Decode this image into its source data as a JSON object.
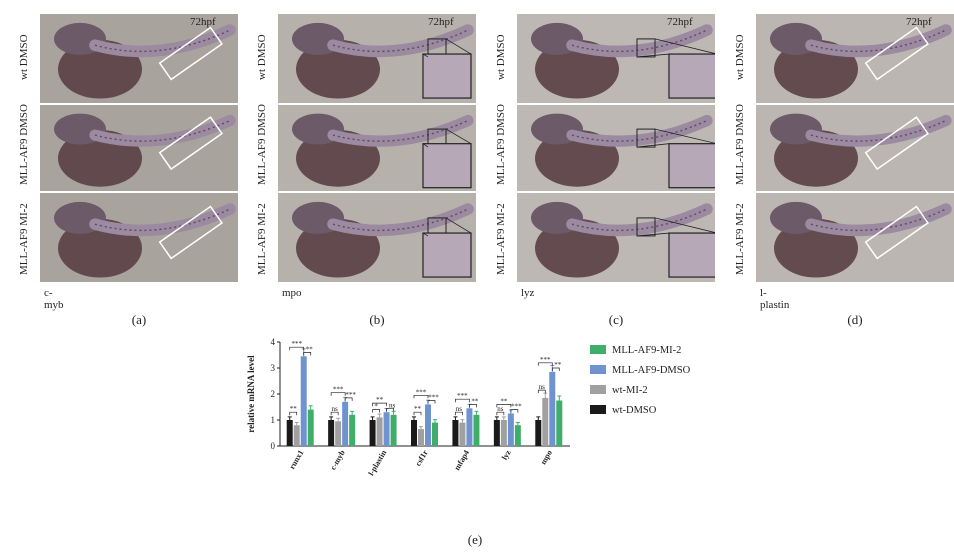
{
  "panels": [
    {
      "id": "a",
      "caption": "(a)",
      "gene": "c-myb",
      "hpf": "72hpf"
    },
    {
      "id": "b",
      "caption": "(b)",
      "gene": "mpo",
      "hpf": "72hpf"
    },
    {
      "id": "c",
      "caption": "(c)",
      "gene": "lyz",
      "hpf": "72hpf"
    },
    {
      "id": "d",
      "caption": "(d)",
      "gene": "l-plastin",
      "hpf": "72hpf"
    }
  ],
  "row_labels": [
    "wt DMSO",
    "MLL-AF9 DMSO",
    "MLL-AF9 MI-2"
  ],
  "chart_caption": "(e)",
  "chart_data": {
    "type": "bar",
    "ylabel": "relative mRNA level",
    "ylim": [
      0,
      4
    ],
    "yticks": [
      "0",
      "1",
      "2",
      "3",
      "4"
    ],
    "categories": [
      "runx1",
      "c-myb",
      "l-plastin",
      "csf1r",
      "mfap4",
      "lyz",
      "mpo"
    ],
    "series": [
      {
        "name": "wt-DMSO",
        "color": "#1a1a1a",
        "values": [
          1.0,
          1.0,
          1.0,
          1.0,
          1.0,
          1.0,
          1.0
        ]
      },
      {
        "name": "wt-MI-2",
        "color": "#a0a0a0",
        "values": [
          0.8,
          0.95,
          1.1,
          0.65,
          0.9,
          1.0,
          1.85
        ]
      },
      {
        "name": "MLL-AF9-DMSO",
        "color": "#6f93cf",
        "values": [
          3.45,
          1.7,
          1.3,
          1.6,
          1.45,
          1.25,
          2.85
        ]
      },
      {
        "name": "MLL-AF9-MI-2",
        "color": "#3fae6a",
        "values": [
          1.4,
          1.2,
          1.2,
          0.9,
          1.2,
          0.8,
          1.75
        ]
      }
    ],
    "legend_order": [
      "MLL-AF9-MI-2",
      "MLL-AF9-DMSO",
      "wt-MI-2",
      "wt-DMSO"
    ],
    "annotations": [
      {
        "category": "runx1",
        "lower": "**",
        "upper": "***",
        "upper2": "**"
      },
      {
        "category": "c-myb",
        "lower": "ns",
        "upper": "***",
        "upper2": "***"
      },
      {
        "category": "l-plastin",
        "lower": "*",
        "upper": "**",
        "upper2": "ns"
      },
      {
        "category": "csf1r",
        "lower": "**",
        "upper": "***",
        "upper2": "***"
      },
      {
        "category": "mfap4",
        "lower": "ns",
        "upper": "***",
        "upper2": "**"
      },
      {
        "category": "lyz",
        "lower": "ns",
        "upper": "**",
        "upper2": "***"
      },
      {
        "category": "mpo",
        "lower": "ns",
        "upper": "***",
        "upper2": "**"
      }
    ]
  }
}
